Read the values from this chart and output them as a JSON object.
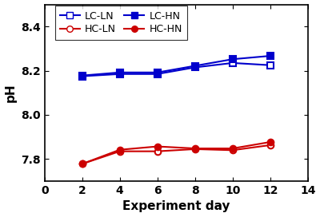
{
  "x": [
    2,
    4,
    6,
    8,
    10,
    12
  ],
  "LC_LN": [
    8.175,
    8.185,
    8.185,
    8.215,
    8.235,
    8.225
  ],
  "LC_HN": [
    8.178,
    8.192,
    8.192,
    8.222,
    8.252,
    8.267
  ],
  "HC_LN": [
    7.778,
    7.835,
    7.835,
    7.845,
    7.84,
    7.863
  ],
  "HC_HN": [
    7.778,
    7.842,
    7.857,
    7.848,
    7.848,
    7.877
  ],
  "blue_color": "#0000cc",
  "red_color": "#cc0000",
  "xlim": [
    0,
    14
  ],
  "ylim": [
    7.7,
    8.5
  ],
  "yticks": [
    7.8,
    8.0,
    8.2,
    8.4
  ],
  "xticks": [
    0,
    2,
    4,
    6,
    8,
    10,
    12,
    14
  ],
  "xlabel": "Experiment day",
  "ylabel": "pH",
  "legend_labels": [
    "LC-LN",
    "HC-LN",
    "LC-HN",
    "HC-HN"
  ]
}
